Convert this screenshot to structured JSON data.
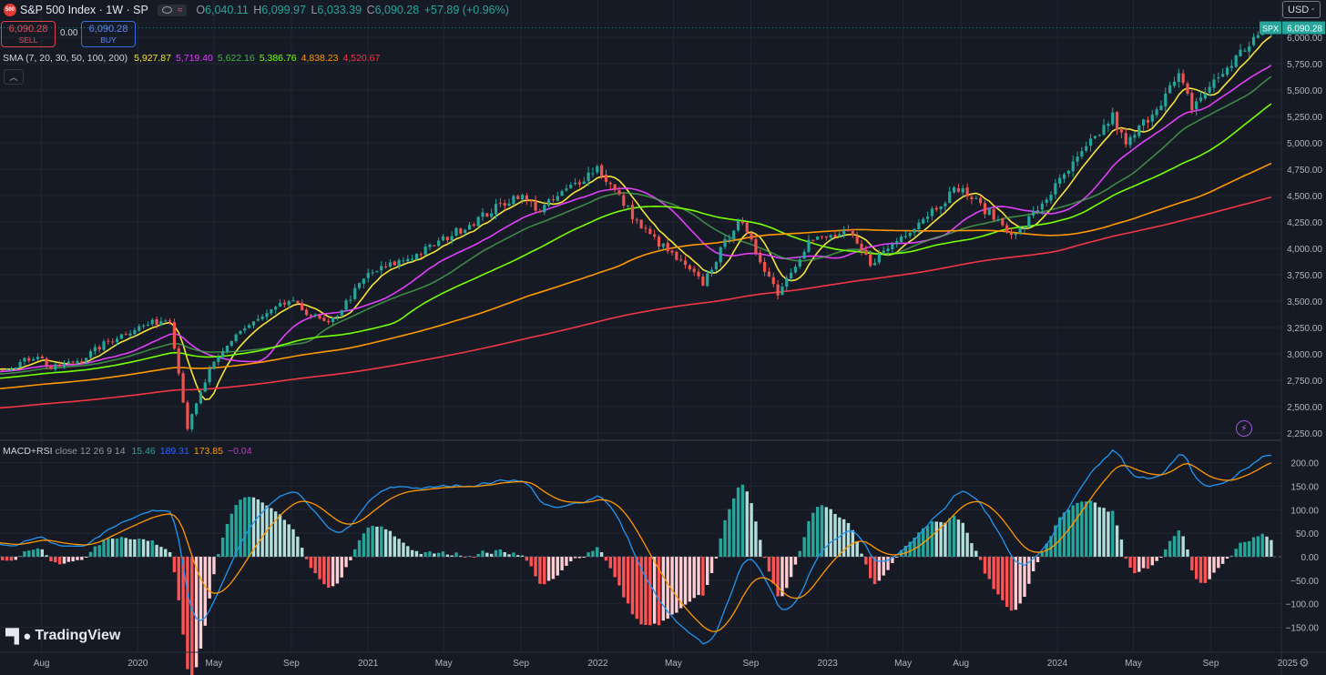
{
  "header": {
    "badge": "500",
    "symbol": "S&P 500 Index · 1W · SP",
    "open_label": "O",
    "open": "6,040.11",
    "high_label": "H",
    "high": "6,099.97",
    "low_label": "L",
    "low": "6,033.39",
    "close_label": "C",
    "close": "6,090.28",
    "change": "+57.89 (+0.96%)"
  },
  "trade": {
    "sell_price": "6,090.28",
    "sell_label": "SELL",
    "spread": "0.00",
    "buy_price": "6,090.28",
    "buy_label": "BUY"
  },
  "currency": "USD",
  "sma_legend": {
    "title": "SMA (7, 20, 30, 50, 100, 200)",
    "values": [
      {
        "text": "5,927.87",
        "color": "#f5e33b"
      },
      {
        "text": "5,719.40",
        "color": "#e040fb"
      },
      {
        "text": "5,622.16",
        "color": "#4caf50"
      },
      {
        "text": "5,386.76",
        "color": "#76ff03"
      },
      {
        "text": "4,838.23",
        "color": "#ff9800"
      },
      {
        "text": "4,520.67",
        "color": "#f23645"
      }
    ]
  },
  "macd_legend": {
    "title": "MACD+RSI",
    "params": "close 12 26 9 14",
    "values": [
      {
        "text": "15.46",
        "color": "#26a69a"
      },
      {
        "text": "189.31",
        "color": "#2962ff"
      },
      {
        "text": "173.85",
        "color": "#ff9800"
      },
      {
        "text": "−0.04",
        "color": "#b63ec7"
      }
    ]
  },
  "brand": "TradingView",
  "colors": {
    "bg": "#161a25",
    "up": "#26a69a",
    "down": "#ef5350",
    "grid": "#222631",
    "text": "#b2b5be",
    "macd": "#2196f3",
    "signal": "#ff9800"
  },
  "chart_data": [
    {
      "type": "candlestick",
      "title": "S&P 500 Index · 1W · SP",
      "y_ticks": [
        2250,
        2500,
        2750,
        3000,
        3250,
        3500,
        3750,
        4000,
        4250,
        4500,
        4750,
        5000,
        5250,
        5500,
        5750,
        6000
      ],
      "y_tick_labels": [
        "2,250.00",
        "2,500.00",
        "2,750.00",
        "3,000.00",
        "3,250.00",
        "3,500.00",
        "3,750.00",
        "4,000.00",
        "4,250.00",
        "4,500.00",
        "4,750.00",
        "5,000.00",
        "5,250.00",
        "5,500.00",
        "5,750.00",
        "6,000.00"
      ],
      "last_price": 6090.28,
      "last_price_label": "6,090.28",
      "symbol_tag": "SPX",
      "x_ticks": [
        {
          "label": "Aug",
          "date": "2019-08-01"
        },
        {
          "label": "2020",
          "date": "2020-01-01"
        },
        {
          "label": "May",
          "date": "2020-05-01"
        },
        {
          "label": "Sep",
          "date": "2020-09-01"
        },
        {
          "label": "2021",
          "date": "2021-01-01"
        },
        {
          "label": "May",
          "date": "2021-05-01"
        },
        {
          "label": "Sep",
          "date": "2021-09-01"
        },
        {
          "label": "2022",
          "date": "2022-01-01"
        },
        {
          "label": "May",
          "date": "2022-05-01"
        },
        {
          "label": "Sep",
          "date": "2022-09-01"
        },
        {
          "label": "2023",
          "date": "2023-01-01"
        },
        {
          "label": "May",
          "date": "2023-05-01"
        },
        {
          "label": "Aug",
          "date": "2023-08-01"
        },
        {
          "label": "2024",
          "date": "2024-01-01"
        },
        {
          "label": "May",
          "date": "2024-05-01"
        },
        {
          "label": "Sep",
          "date": "2024-09-01"
        },
        {
          "label": "2025",
          "date": "2025-01-01"
        }
      ],
      "close_path": [
        [
          "2019-06-14",
          2880
        ],
        [
          "2019-07-26",
          2990
        ],
        [
          "2019-08-16",
          2860
        ],
        [
          "2019-10-04",
          2950
        ],
        [
          "2019-11-15",
          3120
        ],
        [
          "2019-12-27",
          3240
        ],
        [
          "2020-02-21",
          3340
        ],
        [
          "2020-03-20",
          2300
        ],
        [
          "2020-04-24",
          2840
        ],
        [
          "2020-06-05",
          3190
        ],
        [
          "2020-08-28",
          3500
        ],
        [
          "2020-10-30",
          3270
        ],
        [
          "2020-12-31",
          3750
        ],
        [
          "2021-03-26",
          3960
        ],
        [
          "2021-06-25",
          4280
        ],
        [
          "2021-08-27",
          4510
        ],
        [
          "2021-10-01",
          4360
        ],
        [
          "2021-12-31",
          4770
        ],
        [
          "2022-03-11",
          4200
        ],
        [
          "2022-06-17",
          3670
        ],
        [
          "2022-08-12",
          4280
        ],
        [
          "2022-10-14",
          3580
        ],
        [
          "2022-12-02",
          4070
        ],
        [
          "2023-02-03",
          4140
        ],
        [
          "2023-03-10",
          3860
        ],
        [
          "2023-07-28",
          4580
        ],
        [
          "2023-10-27",
          4120
        ],
        [
          "2024-03-29",
          5250
        ],
        [
          "2024-04-19",
          4970
        ],
        [
          "2024-07-12",
          5620
        ],
        [
          "2024-08-02",
          5340
        ],
        [
          "2024-11-08",
          5990
        ],
        [
          "2024-12-06",
          6090
        ]
      ],
      "sma": [
        {
          "period": 7,
          "last": 5927.87,
          "color": "#f5e33b"
        },
        {
          "period": 20,
          "last": 5719.4,
          "color": "#e040fb"
        },
        {
          "period": 30,
          "last": 5622.16,
          "color": "#4caf50"
        },
        {
          "period": 50,
          "last": 5386.76,
          "color": "#76ff03"
        },
        {
          "period": 100,
          "last": 4838.23,
          "color": "#ff9800"
        },
        {
          "period": 200,
          "last": 4520.67,
          "color": "#f23645"
        }
      ]
    },
    {
      "type": "macd",
      "title": "MACD+RSI close 12 26 9 14",
      "params": {
        "fast": 12,
        "slow": 26,
        "signal": 9,
        "rsi": 14
      },
      "y_ticks": [
        -150,
        -100,
        -50,
        0,
        50,
        100,
        150,
        200
      ],
      "y_tick_labels": [
        "−150.00",
        "−100.00",
        "−50.00",
        "0.00",
        "50.00",
        "100.00",
        "150.00",
        "200.00"
      ],
      "last": {
        "histogram": 15.46,
        "macd": 189.31,
        "signal": 173.85,
        "rsi": -0.04
      }
    }
  ]
}
